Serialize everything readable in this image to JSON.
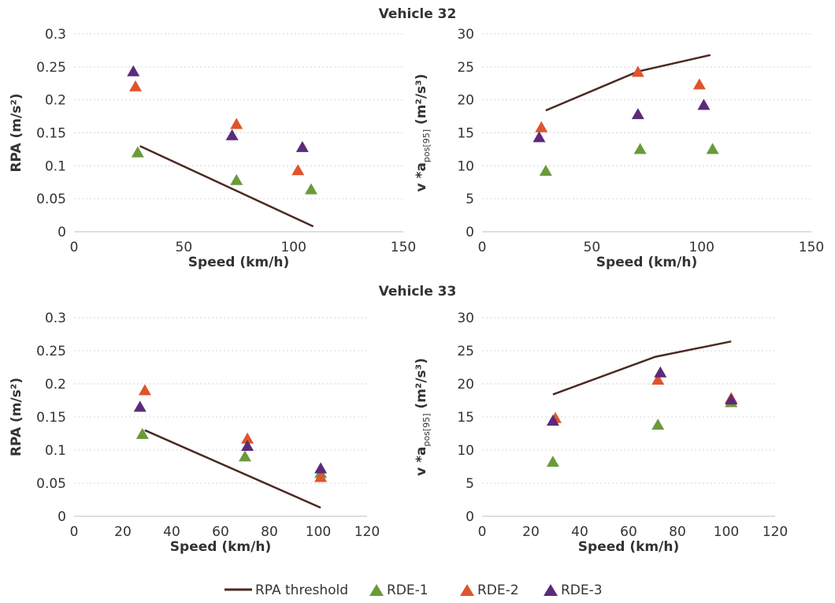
{
  "colors": {
    "threshold": "#4a2a22",
    "rde1": "#6a9a3a",
    "rde2": "#e0542c",
    "rde3": "#5c2a7a",
    "grid": "#d6d6d6",
    "axis": "#bfbfbf"
  },
  "legend": {
    "threshold": "RPA threshold",
    "rde1": "RDE-1",
    "rde2": "RDE-2",
    "rde3": "RDE-3"
  },
  "vehicle_titles": [
    "Vehicle 32",
    "Vehicle 33"
  ],
  "chart_data": [
    {
      "type": "scatter",
      "vehicle": "Vehicle 32",
      "xlabel": "Speed (km/h)",
      "ylabel": "RPA (m/s²)",
      "xlim": [
        0,
        150
      ],
      "ylim": [
        0,
        0.3
      ],
      "xticks": [
        "0",
        "50",
        "100",
        "150"
      ],
      "yticks": [
        "0",
        "0.05",
        "0.1",
        "0.15",
        "0.2",
        "0.25",
        "0.3"
      ],
      "threshold": [
        [
          30,
          0.13
        ],
        [
          109,
          0.008
        ]
      ],
      "series": [
        {
          "name": "RDE-1",
          "points": [
            [
              29,
              0.12
            ],
            [
              74,
              0.078
            ],
            [
              108,
              0.064
            ]
          ]
        },
        {
          "name": "RDE-2",
          "points": [
            [
              28,
              0.22
            ],
            [
              74,
              0.163
            ],
            [
              102,
              0.093
            ]
          ]
        },
        {
          "name": "RDE-3",
          "points": [
            [
              27,
              0.243
            ],
            [
              72,
              0.146
            ],
            [
              104,
              0.128
            ]
          ]
        }
      ]
    },
    {
      "type": "scatter",
      "vehicle": "Vehicle 32",
      "xlabel": "Speed (km/h)",
      "ylabel_parts": [
        "v *a",
        "pos[95]",
        " (m²/s³)"
      ],
      "xlim": [
        0,
        150
      ],
      "ylim": [
        0,
        30
      ],
      "xticks": [
        "0",
        "50",
        "100",
        "150"
      ],
      "yticks": [
        "0",
        "5",
        "10",
        "15",
        "20",
        "25",
        "30"
      ],
      "threshold": [
        [
          29,
          18.4
        ],
        [
          71,
          24.3
        ],
        [
          104,
          26.8
        ]
      ],
      "series": [
        {
          "name": "RDE-1",
          "points": [
            [
              29,
              9.2
            ],
            [
              72,
              12.5
            ],
            [
              105,
              12.5
            ]
          ]
        },
        {
          "name": "RDE-2",
          "points": [
            [
              27,
              15.8
            ],
            [
              71,
              24.2
            ],
            [
              99,
              22.3
            ]
          ]
        },
        {
          "name": "RDE-3",
          "points": [
            [
              26,
              14.3
            ],
            [
              71,
              17.8
            ],
            [
              101,
              19.2
            ]
          ]
        }
      ]
    },
    {
      "type": "scatter",
      "vehicle": "Vehicle 33",
      "xlabel": "Speed (km/h)",
      "ylabel": "RPA (m/s²)",
      "xlim": [
        0,
        120
      ],
      "ylim": [
        0,
        0.3
      ],
      "xticks": [
        "0",
        "20",
        "40",
        "60",
        "80",
        "100",
        "120"
      ],
      "yticks": [
        "0",
        "0.05",
        "0.1",
        "0.15",
        "0.2",
        "0.25",
        "0.3"
      ],
      "threshold": [
        [
          29,
          0.13
        ],
        [
          101,
          0.013
        ]
      ],
      "series": [
        {
          "name": "RDE-1",
          "points": [
            [
              28,
              0.124
            ],
            [
              70,
              0.09
            ],
            [
              101,
              0.065
            ]
          ]
        },
        {
          "name": "RDE-2",
          "points": [
            [
              29,
              0.19
            ],
            [
              71,
              0.117
            ],
            [
              101,
              0.059
            ]
          ]
        },
        {
          "name": "RDE-3",
          "points": [
            [
              27,
              0.165
            ],
            [
              71,
              0.106
            ],
            [
              101,
              0.072
            ]
          ]
        }
      ]
    },
    {
      "type": "scatter",
      "vehicle": "Vehicle 33",
      "xlabel": "Speed (km/h)",
      "ylabel_parts": [
        "v *a",
        "pos[95]",
        " (m²/s³)"
      ],
      "xlim": [
        0,
        120
      ],
      "ylim": [
        0,
        30
      ],
      "xticks": [
        "0",
        "20",
        "40",
        "60",
        "80",
        "100",
        "120"
      ],
      "yticks": [
        "0",
        "5",
        "10",
        "15",
        "20",
        "25",
        "30"
      ],
      "threshold": [
        [
          29,
          18.4
        ],
        [
          71,
          24.1
        ],
        [
          102,
          26.4
        ]
      ],
      "series": [
        {
          "name": "RDE-1",
          "points": [
            [
              29,
              8.2
            ],
            [
              72,
              13.8
            ],
            [
              102,
              17.2
            ]
          ]
        },
        {
          "name": "RDE-2",
          "points": [
            [
              30,
              14.8
            ],
            [
              72,
              20.6
            ],
            [
              102,
              17.8
            ]
          ]
        },
        {
          "name": "RDE-3",
          "points": [
            [
              29,
              14.4
            ],
            [
              73,
              21.7
            ],
            [
              102,
              17.6
            ]
          ]
        }
      ]
    }
  ]
}
